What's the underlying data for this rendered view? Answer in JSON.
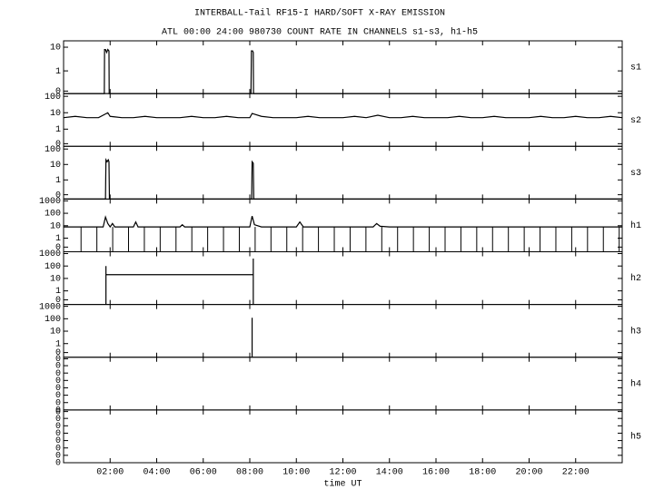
{
  "header": {
    "title": "INTERBALL-Tail RF15-I HARD/SOFT X-RAY EMISSION",
    "subtitle": "ATL 00:00 24:00 980730  COUNT RATE IN CHANNELS s1-s3, h1-h5"
  },
  "chart_data": [
    {
      "type": "line",
      "label": "s1",
      "log_y": true,
      "xlim": [
        0,
        24
      ],
      "ylim": [
        0.11,
        18.6
      ],
      "yticks": [
        {
          "value": 0.14,
          "label": "0"
        },
        1,
        10
      ],
      "series": [
        {
          "style": "line",
          "x": [
            0,
            1.75,
            1.76,
            1.8,
            1.85,
            1.9,
            1.95,
            1.96,
            8.05,
            8.07,
            8.12,
            8.15,
            8.16,
            24
          ],
          "values": [
            0.11,
            0.11,
            8,
            8,
            6,
            8,
            7,
            0.11,
            0.11,
            7,
            7,
            6,
            0.11,
            0.11
          ]
        }
      ]
    },
    {
      "type": "line",
      "label": "s2",
      "log_y": true,
      "xlim": [
        0,
        24
      ],
      "ylim": [
        0.09,
        147
      ],
      "yticks": [
        {
          "value": 0.13,
          "label": "0"
        },
        1,
        10,
        100
      ],
      "series": [
        {
          "style": "line",
          "x": [
            0,
            0.5,
            1,
            1.5,
            1.9,
            2,
            2.5,
            3,
            3.5,
            4,
            4.5,
            5,
            5.5,
            6,
            6.5,
            7,
            7.5,
            8,
            8.1,
            8.5,
            9,
            9.5,
            10,
            10.5,
            11,
            11.5,
            12,
            12.5,
            13,
            13.5,
            14,
            14.5,
            15,
            15.5,
            16,
            16.5,
            17,
            17.5,
            18,
            18.5,
            19,
            19.5,
            20,
            20.5,
            21,
            21.5,
            22,
            22.5,
            23,
            23.5,
            24
          ],
          "values": [
            5,
            6,
            5,
            5,
            10,
            6,
            5,
            5,
            6,
            5,
            5,
            5,
            6,
            5,
            5,
            6,
            5,
            5,
            9,
            6,
            5,
            5,
            5,
            6,
            5,
            5,
            5,
            6,
            5,
            7,
            5,
            5,
            6,
            5,
            5,
            5,
            6,
            5,
            5,
            6,
            5,
            5,
            5,
            6,
            5,
            5,
            6,
            5,
            5,
            6,
            5
          ]
        }
      ]
    },
    {
      "type": "line",
      "label": "s3",
      "log_y": true,
      "xlim": [
        0,
        24
      ],
      "ylim": [
        0.058,
        150
      ],
      "yticks": [
        {
          "value": 0.11,
          "label": "0"
        },
        1,
        10,
        100
      ],
      "series": [
        {
          "style": "line",
          "x": [
            0,
            1.8,
            1.82,
            1.87,
            1.92,
            1.95,
            1.97,
            8.08,
            8.1,
            8.15,
            8.17,
            24
          ],
          "values": [
            0.058,
            0.058,
            20,
            15,
            20,
            15,
            0.058,
            0.058,
            15,
            12,
            0.058,
            0.058
          ]
        }
      ]
    },
    {
      "type": "line",
      "label": "h1",
      "log_y": true,
      "xlim": [
        0,
        24
      ],
      "ylim": [
        0.08,
        1400
      ],
      "yticks": [
        {
          "value": 0.19,
          "label": "0"
        },
        1,
        10,
        100,
        1000
      ],
      "series": [
        {
          "style": "line",
          "x": [
            0,
            1,
            1.7,
            1.8,
            1.9,
            2,
            2.1,
            2.2,
            3,
            3.1,
            3.2,
            5,
            5.1,
            5.2,
            8,
            8.1,
            8.2,
            8.5,
            10,
            10.15,
            10.3,
            13.3,
            13.45,
            13.6,
            14,
            16,
            18,
            20,
            22,
            24
          ],
          "values": [
            8,
            8,
            8,
            50,
            15,
            8,
            15,
            8,
            8,
            20,
            8,
            8,
            12,
            8,
            8,
            60,
            12,
            8,
            8,
            20,
            8,
            8,
            15,
            9,
            8,
            8,
            8,
            8,
            8,
            8
          ]
        },
        {
          "style": "stem",
          "x": [
            0.75,
            1.43,
            2.11,
            2.79,
            3.47,
            4.15,
            4.83,
            5.51,
            6.19,
            6.87,
            7.55,
            8.23,
            8.91,
            9.59,
            10.27,
            10.95,
            11.63,
            12.31,
            12.99,
            13.67,
            14.35,
            15.03,
            15.71,
            16.39,
            17.07,
            17.75,
            18.43,
            19.11,
            19.79,
            20.47,
            21.15,
            21.83,
            22.51,
            23.19,
            23.87
          ],
          "values": [
            8,
            8,
            8,
            8,
            8,
            8,
            8,
            8,
            8,
            8,
            8,
            8,
            8,
            8,
            8,
            8,
            8,
            8,
            8,
            8,
            8,
            8,
            8,
            8,
            8,
            8,
            8,
            8,
            8,
            8,
            8,
            8,
            8,
            8,
            8
          ]
        }
      ]
    },
    {
      "type": "line",
      "label": "h2",
      "log_y": true,
      "xlim": [
        0,
        24
      ],
      "ylim": [
        0.08,
        1400
      ],
      "yticks": [
        {
          "value": 0.19,
          "label": "0"
        },
        1,
        10,
        100,
        1000
      ],
      "series": [
        {
          "style": "line",
          "x": [
            1.82,
            1.82,
            1.82,
            8.15,
            8.15,
            8.15
          ],
          "values": [
            0.08,
            100,
            20,
            20,
            400,
            0.08
          ]
        }
      ]
    },
    {
      "type": "line",
      "label": "h3",
      "log_y": true,
      "xlim": [
        0,
        24
      ],
      "ylim": [
        0.08,
        1400
      ],
      "yticks": [
        {
          "value": 0.19,
          "label": "0"
        },
        1,
        10,
        100,
        1000
      ],
      "series": [
        {
          "style": "line",
          "x": [
            8.1,
            8.1
          ],
          "values": [
            0.08,
            120
          ]
        }
      ]
    },
    {
      "type": "line",
      "label": "h4",
      "log_y": false,
      "xlim": [
        0,
        24
      ],
      "ylim": [
        0,
        1
      ],
      "yticks": [
        0,
        {
          "value": 0.14,
          "label": "0"
        },
        {
          "value": 0.28,
          "label": "0"
        },
        {
          "value": 0.42,
          "label": "0"
        },
        {
          "value": 0.56,
          "label": "0"
        },
        {
          "value": 0.7,
          "label": "0"
        },
        {
          "value": 0.84,
          "label": "0"
        },
        {
          "value": 0.97,
          "label": "0"
        }
      ],
      "series": []
    },
    {
      "type": "line",
      "label": "h5",
      "log_y": false,
      "xlim": [
        0,
        24
      ],
      "ylim": [
        0,
        1
      ],
      "xlabel": "time UT",
      "xticks": [
        {
          "value": 2,
          "label": "02:00"
        },
        {
          "value": 4,
          "label": "04:00"
        },
        {
          "value": 6,
          "label": "06:00"
        },
        {
          "value": 8,
          "label": "08:00"
        },
        {
          "value": 10,
          "label": "10:00"
        },
        {
          "value": 12,
          "label": "12:00"
        },
        {
          "value": 14,
          "label": "14:00"
        },
        {
          "value": 16,
          "label": "16:00"
        },
        {
          "value": 18,
          "label": "18:00"
        },
        {
          "value": 20,
          "label": "20:00"
        },
        {
          "value": 22,
          "label": "22:00"
        }
      ],
      "yticks": [
        0,
        {
          "value": 0.14,
          "label": "0"
        },
        {
          "value": 0.28,
          "label": "0"
        },
        {
          "value": 0.42,
          "label": "0"
        },
        {
          "value": 0.56,
          "label": "0"
        },
        {
          "value": 0.7,
          "label": "0"
        },
        {
          "value": 0.84,
          "label": "0"
        },
        {
          "value": 0.97,
          "label": "0"
        }
      ],
      "series": []
    }
  ]
}
